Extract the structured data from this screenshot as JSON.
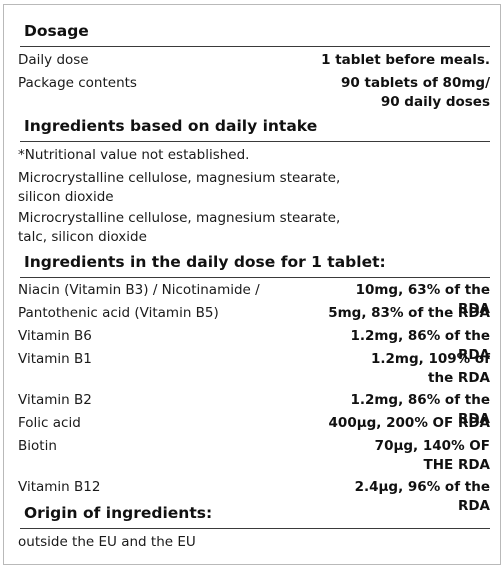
{
  "dosage": {
    "heading": "Dosage",
    "rows": [
      {
        "label": "Daily dose",
        "value": "1 tablet before meals."
      },
      {
        "label": "Package contents",
        "value": "90 tablets of 80mg/ 90 daily doses"
      }
    ]
  },
  "ingredients_daily_intake": {
    "heading": "Ingredients based on daily intake",
    "lines": [
      "*Nutritional value not established.",
      "Microcrystalline cellulose, magnesium stearate, silicon dioxide",
      "Microcrystalline cellulose, magnesium stearate, talc, silicon dioxide"
    ]
  },
  "ingredients_per_tablet": {
    "heading": "Ingredients in the daily dose for 1 tablet:",
    "rows": [
      {
        "label": "Niacin (Vitamin B3) / Nicotinamide /",
        "value": "10mg, 63% of the RDA"
      },
      {
        "label": "Pantothenic acid (Vitamin B5)",
        "value": "5mg, 83% of the RDA"
      },
      {
        "label": "Vitamin B6",
        "value": "1.2mg, 86% of the RDA"
      },
      {
        "label": "Vitamin B1",
        "value": "1.2mg, 109% of the RDA"
      },
      {
        "label": "Vitamin B2",
        "value": "1.2mg, 86% of the RDA"
      },
      {
        "label": "Folic acid",
        "value": "400μg, 200% OF RDA"
      },
      {
        "label": "Biotin",
        "value": "70μg, 140% OF THE RDA"
      },
      {
        "label": "Vitamin B12",
        "value": "2.4μg, 96% of the RDA"
      }
    ]
  },
  "origin": {
    "heading": "Origin of ingredients:",
    "text": "outside the EU and the EU"
  }
}
